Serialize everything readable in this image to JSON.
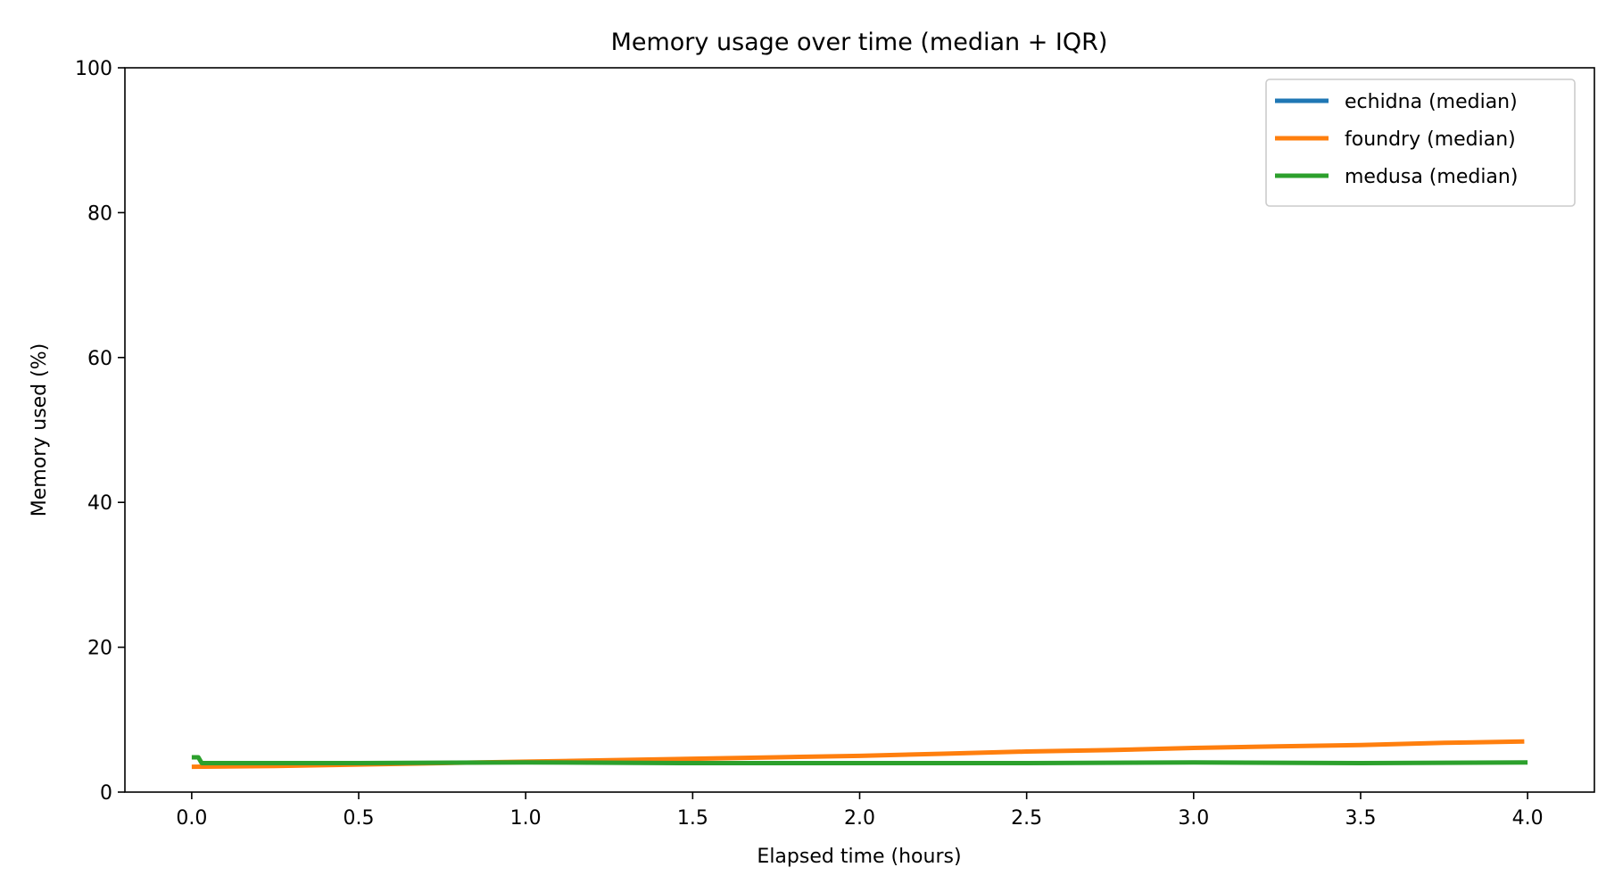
{
  "chart_data": {
    "type": "line",
    "title": "Memory usage over time (median + IQR)",
    "xlabel": "Elapsed time (hours)",
    "ylabel": "Memory used (%)",
    "xlim": [
      -0.2,
      4.2
    ],
    "ylim": [
      0,
      100
    ],
    "xticks": [
      0.0,
      0.5,
      1.0,
      1.5,
      2.0,
      2.5,
      3.0,
      3.5,
      4.0
    ],
    "xtick_labels": [
      "0.0",
      "0.5",
      "1.0",
      "1.5",
      "2.0",
      "2.5",
      "3.0",
      "3.5",
      "4.0"
    ],
    "yticks": [
      0,
      20,
      40,
      60,
      80,
      100
    ],
    "ytick_labels": [
      "0",
      "20",
      "40",
      "60",
      "80",
      "100"
    ],
    "grid": false,
    "legend_position": "top-right",
    "series": [
      {
        "name": "echidna (median)",
        "color": "#1f77b4",
        "x": [],
        "y": []
      },
      {
        "name": "foundry (median)",
        "color": "#ff7f0e",
        "x": [
          0.0,
          0.25,
          0.5,
          0.75,
          1.0,
          1.25,
          1.5,
          1.75,
          2.0,
          2.25,
          2.5,
          2.75,
          3.0,
          3.25,
          3.5,
          3.75,
          3.99
        ],
        "y": [
          3.5,
          3.6,
          3.8,
          4.0,
          4.2,
          4.4,
          4.6,
          4.8,
          5.0,
          5.3,
          5.6,
          5.8,
          6.1,
          6.3,
          6.5,
          6.8,
          7.0
        ]
      },
      {
        "name": "medusa (median)",
        "color": "#2ca02c",
        "x": [
          0.0,
          0.02,
          0.03,
          0.5,
          1.0,
          1.5,
          2.0,
          2.5,
          3.0,
          3.5,
          4.0
        ],
        "y": [
          4.8,
          4.8,
          4.0,
          4.0,
          4.1,
          4.0,
          4.0,
          4.0,
          4.1,
          4.0,
          4.1
        ]
      }
    ]
  }
}
